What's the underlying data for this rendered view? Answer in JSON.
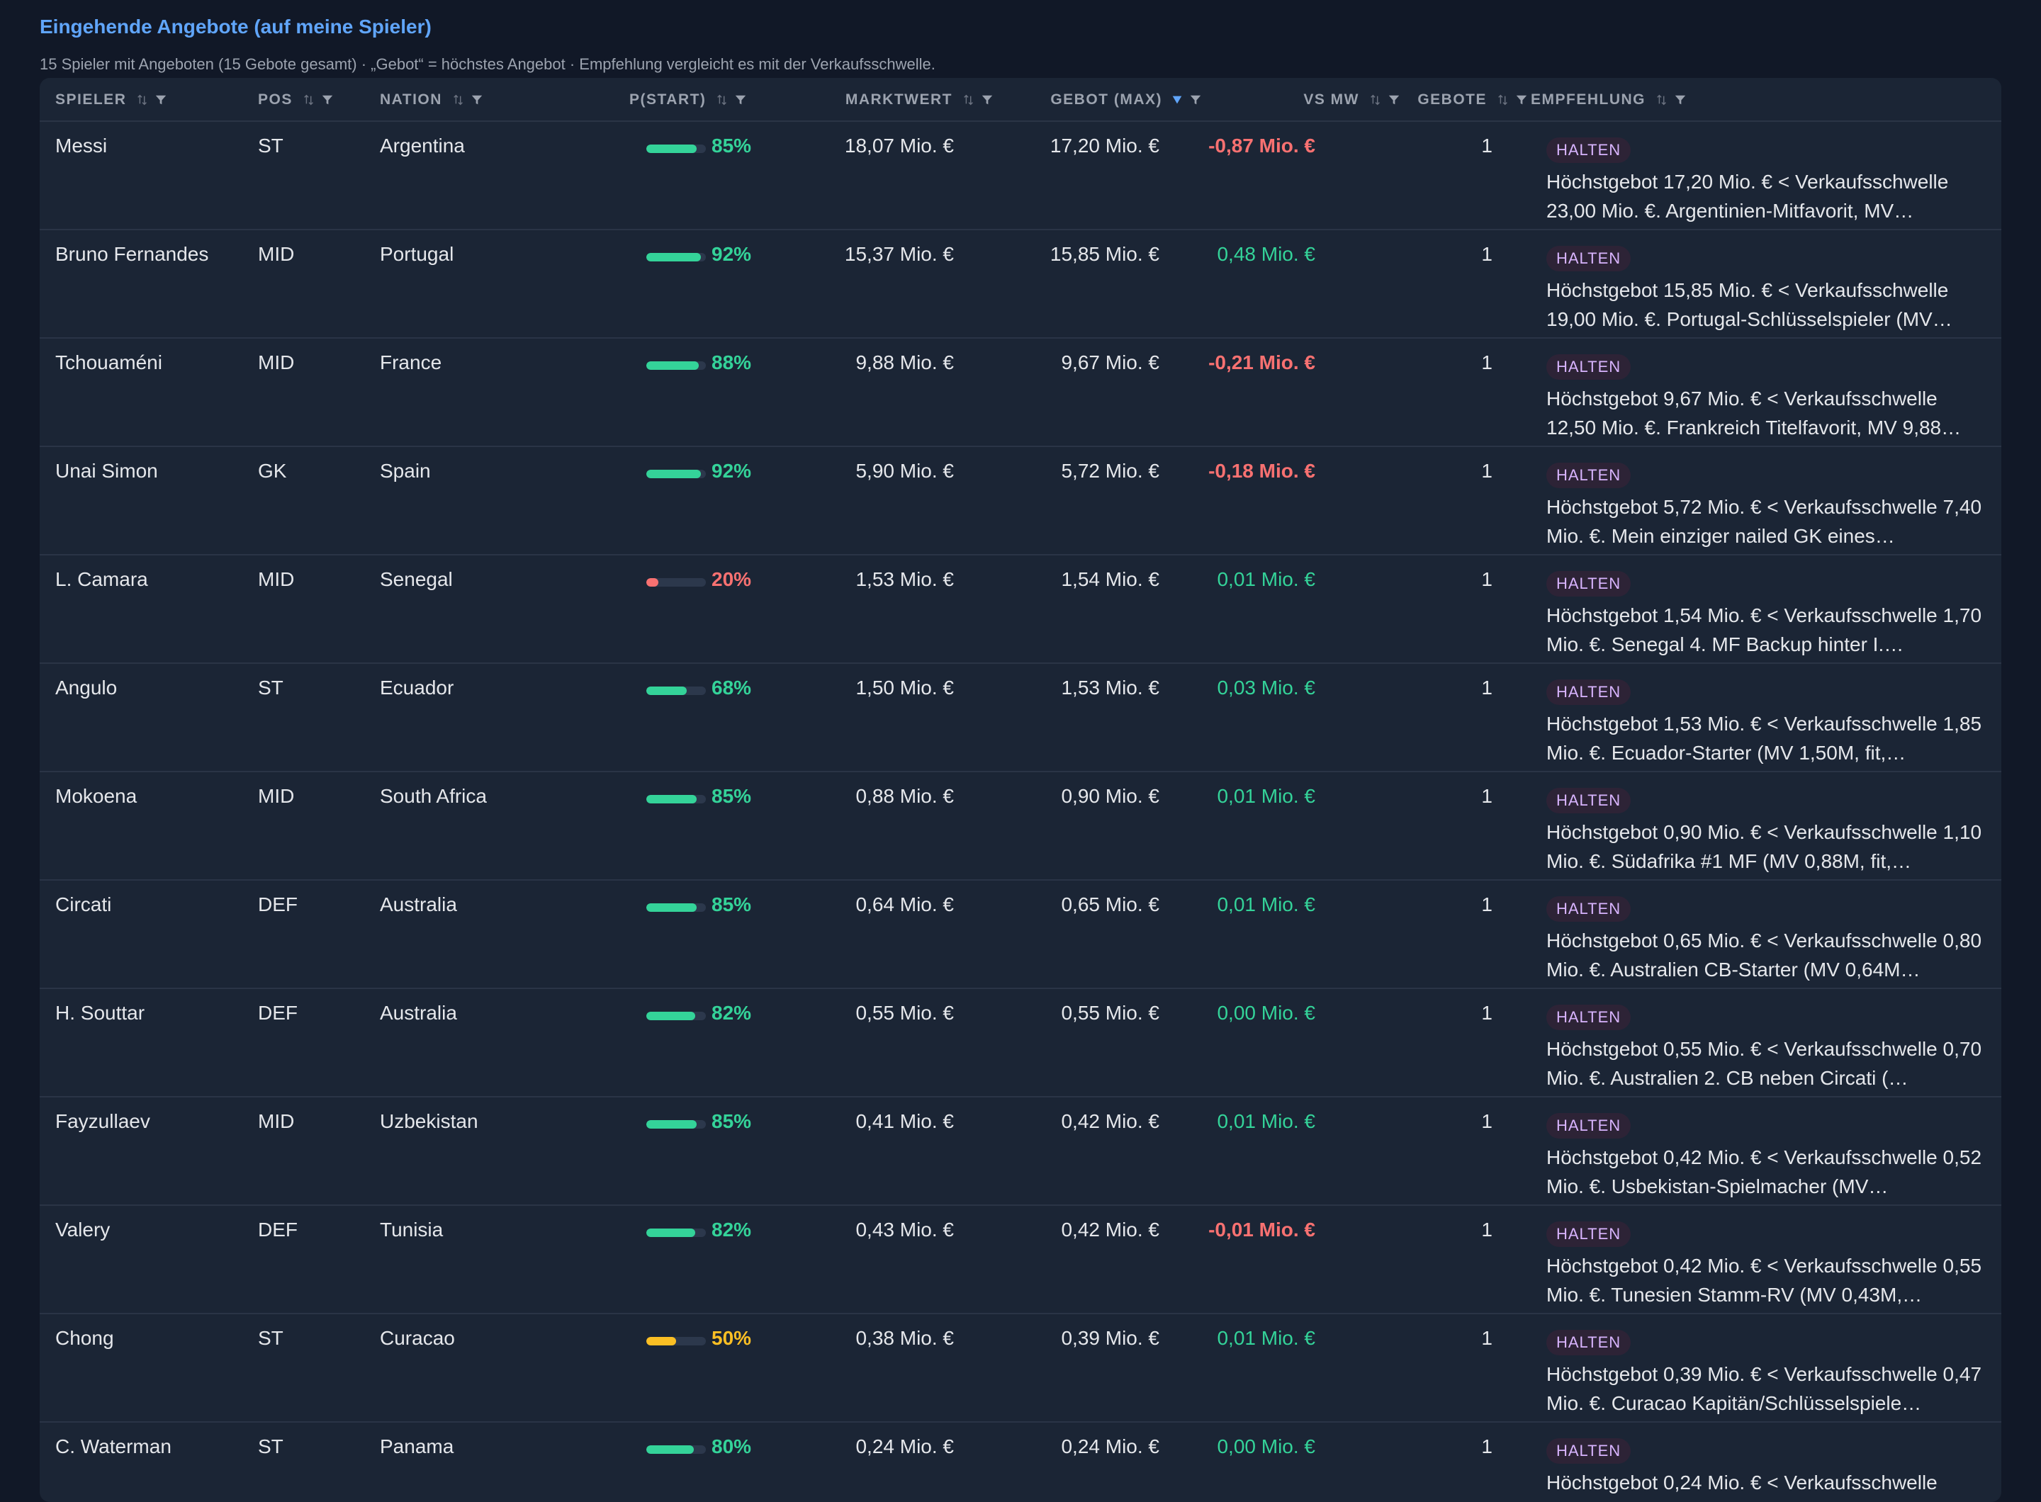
{
  "title": "Eingehende Angebote (auf meine Spieler)",
  "subtitle": "15 Spieler mit Angeboten (15 Gebote gesamt) · „Gebot“ = höchstes Angebot · Empfehlung vergleicht es mit der Verkaufsschwelle.",
  "colors": {
    "accent": "#60a5fa",
    "positive": "#34d399",
    "negative": "#f87171",
    "warning": "#fbbf24",
    "badge_text": "#d8b4fe"
  },
  "columns": [
    {
      "key": "spieler",
      "label": "SPIELER",
      "icons": [
        "sort-icon",
        "filter-icon"
      ]
    },
    {
      "key": "pos",
      "label": "POS",
      "icons": [
        "sort-icon",
        "filter-icon"
      ]
    },
    {
      "key": "nation",
      "label": "NATION",
      "icons": [
        "sort-icon",
        "filter-icon"
      ]
    },
    {
      "key": "pstart",
      "label": "P(START)",
      "icons": [
        "sort-icon",
        "filter-icon"
      ]
    },
    {
      "key": "marktwert",
      "label": "MARKTWERT",
      "icons": [
        "sort-icon",
        "filter-icon"
      ]
    },
    {
      "key": "gebot",
      "label": "GEBOT (MAX)",
      "icons": [
        "sort-desc-active-icon",
        "filter-icon"
      ]
    },
    {
      "key": "vsmw",
      "label": "VS MW",
      "icons": [
        "sort-icon",
        "filter-icon"
      ]
    },
    {
      "key": "gebote",
      "label": "GEBOTE",
      "icons": [
        "sort-icon",
        "filter-icon"
      ]
    },
    {
      "key": "empfehlung",
      "label": "EMPFEHLUNG",
      "icons": [
        "sort-icon",
        "filter-icon"
      ]
    }
  ],
  "rows": [
    {
      "spieler": "Messi",
      "pos": "ST",
      "nation": "Argentina",
      "pstart": 0.85,
      "pstart_label": "85%",
      "marktwert": "18,07 Mio. €",
      "gebot": "17,20 Mio. €",
      "vsmw": "-0,87 Mio. €",
      "vsmw_sign": "neg",
      "gebote": "1",
      "badge": "HALTEN",
      "rec": "Höchstgebot 17,20 Mio. € < Verkaufsschwelle 23,00 Mio. €. Argentinien-Mitfavorit, MV…"
    },
    {
      "spieler": "Bruno Fernandes",
      "pos": "MID",
      "nation": "Portugal",
      "pstart": 0.92,
      "pstart_label": "92%",
      "marktwert": "15,37 Mio. €",
      "gebot": "15,85 Mio. €",
      "vsmw": "0,48 Mio. €",
      "vsmw_sign": "pos",
      "gebote": "1",
      "badge": "HALTEN",
      "rec": "Höchstgebot 15,85 Mio. € < Verkaufsschwelle 19,00 Mio. €. Portugal-Schlüsselspieler (MV…"
    },
    {
      "spieler": "Tchouaméni",
      "pos": "MID",
      "nation": "France",
      "pstart": 0.88,
      "pstart_label": "88%",
      "marktwert": "9,88 Mio. €",
      "gebot": "9,67 Mio. €",
      "vsmw": "-0,21 Mio. €",
      "vsmw_sign": "neg",
      "gebote": "1",
      "badge": "HALTEN",
      "rec": "Höchstgebot 9,67 Mio. € < Verkaufsschwelle 12,50 Mio. €. Frankreich Titelfavorit, MV 9,88…"
    },
    {
      "spieler": "Unai Simon",
      "pos": "GK",
      "nation": "Spain",
      "pstart": 0.92,
      "pstart_label": "92%",
      "marktwert": "5,90 Mio. €",
      "gebot": "5,72 Mio. €",
      "vsmw": "-0,18 Mio. €",
      "vsmw_sign": "neg",
      "gebote": "1",
      "badge": "HALTEN",
      "rec": "Höchstgebot 5,72 Mio. € < Verkaufsschwelle 7,40 Mio. €. Mein einziger nailed GK eines…"
    },
    {
      "spieler": "L. Camara",
      "pos": "MID",
      "nation": "Senegal",
      "pstart": 0.2,
      "pstart_label": "20%",
      "marktwert": "1,53 Mio. €",
      "gebot": "1,54 Mio. €",
      "vsmw": "0,01 Mio. €",
      "vsmw_sign": "pos",
      "gebote": "1",
      "badge": "HALTEN",
      "rec": "Höchstgebot 1,54 Mio. € < Verkaufsschwelle 1,70 Mio. €. Senegal 4. MF Backup hinter I.…"
    },
    {
      "spieler": "Angulo",
      "pos": "ST",
      "nation": "Ecuador",
      "pstart": 0.68,
      "pstart_label": "68%",
      "marktwert": "1,50 Mio. €",
      "gebot": "1,53 Mio. €",
      "vsmw": "0,03 Mio. €",
      "vsmw_sign": "pos",
      "gebote": "1",
      "badge": "HALTEN",
      "rec": "Höchstgebot 1,53 Mio. € < Verkaufsschwelle 1,85 Mio. €. Ecuador-Starter (MV 1,50M, fit,…"
    },
    {
      "spieler": "Mokoena",
      "pos": "MID",
      "nation": "South Africa",
      "pstart": 0.85,
      "pstart_label": "85%",
      "marktwert": "0,88 Mio. €",
      "gebot": "0,90 Mio. €",
      "vsmw": "0,01 Mio. €",
      "vsmw_sign": "pos",
      "gebote": "1",
      "badge": "HALTEN",
      "rec": "Höchstgebot 0,90 Mio. € < Verkaufsschwelle 1,10 Mio. €. Südafrika #1 MF (MV 0,88M, fit,…"
    },
    {
      "spieler": "Circati",
      "pos": "DEF",
      "nation": "Australia",
      "pstart": 0.85,
      "pstart_label": "85%",
      "marktwert": "0,64 Mio. €",
      "gebot": "0,65 Mio. €",
      "vsmw": "0,01 Mio. €",
      "vsmw_sign": "pos",
      "gebote": "1",
      "badge": "HALTEN",
      "rec": "Höchstgebot 0,65 Mio. € < Verkaufsschwelle 0,80 Mio. €. Australien CB-Starter (MV 0,64M…"
    },
    {
      "spieler": "H. Souttar",
      "pos": "DEF",
      "nation": "Australia",
      "pstart": 0.82,
      "pstart_label": "82%",
      "marktwert": "0,55 Mio. €",
      "gebot": "0,55 Mio. €",
      "vsmw": "0,00 Mio. €",
      "vsmw_sign": "pos",
      "gebote": "1",
      "badge": "HALTEN",
      "rec": "Höchstgebot 0,55 Mio. € < Verkaufsschwelle 0,70 Mio. €. Australien 2. CB neben Circati (…"
    },
    {
      "spieler": "Fayzullaev",
      "pos": "MID",
      "nation": "Uzbekistan",
      "pstart": 0.85,
      "pstart_label": "85%",
      "marktwert": "0,41 Mio. €",
      "gebot": "0,42 Mio. €",
      "vsmw": "0,01 Mio. €",
      "vsmw_sign": "pos",
      "gebote": "1",
      "badge": "HALTEN",
      "rec": "Höchstgebot 0,42 Mio. € < Verkaufsschwelle 0,52 Mio. €. Usbekistan-Spielmacher (MV…"
    },
    {
      "spieler": "Valery",
      "pos": "DEF",
      "nation": "Tunisia",
      "pstart": 0.82,
      "pstart_label": "82%",
      "marktwert": "0,43 Mio. €",
      "gebot": "0,42 Mio. €",
      "vsmw": "-0,01 Mio. €",
      "vsmw_sign": "neg",
      "gebote": "1",
      "badge": "HALTEN",
      "rec": "Höchstgebot 0,42 Mio. € < Verkaufsschwelle 0,55 Mio. €. Tunesien Stamm-RV (MV 0,43M,…"
    },
    {
      "spieler": "Chong",
      "pos": "ST",
      "nation": "Curacao",
      "pstart": 0.5,
      "pstart_label": "50%",
      "marktwert": "0,38 Mio. €",
      "gebot": "0,39 Mio. €",
      "vsmw": "0,01 Mio. €",
      "vsmw_sign": "pos",
      "gebote": "1",
      "badge": "HALTEN",
      "rec": "Höchstgebot 0,39 Mio. € < Verkaufsschwelle 0,47 Mio. €. Curacao Kapitän/Schlüsselspiele…"
    },
    {
      "spieler": "C. Waterman",
      "pos": "ST",
      "nation": "Panama",
      "pstart": 0.8,
      "pstart_label": "80%",
      "marktwert": "0,24 Mio. €",
      "gebot": "0,24 Mio. €",
      "vsmw": "0,00 Mio. €",
      "vsmw_sign": "pos",
      "gebote": "1",
      "badge": "HALTEN",
      "rec": "Höchstgebot 0,24 Mio. € < Verkaufsschwelle"
    }
  ]
}
